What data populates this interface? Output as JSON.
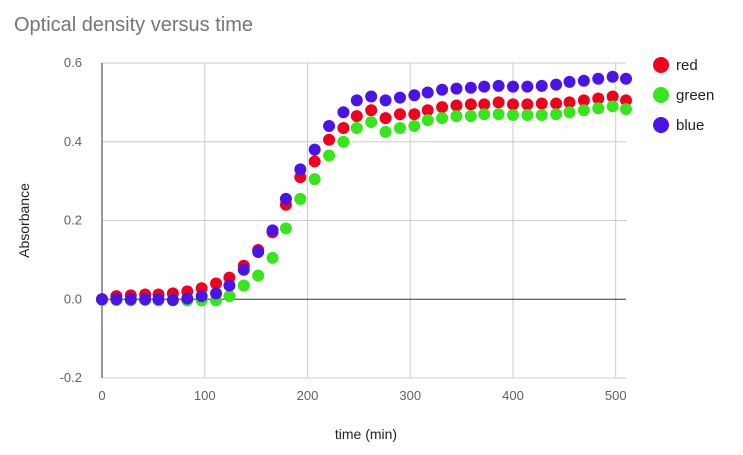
{
  "chart_data": {
    "type": "scatter",
    "title": "Optical density versus time",
    "xlabel": "time (min)",
    "ylabel": "Absorbance",
    "xlim": [
      0,
      510
    ],
    "ylim": [
      -0.2,
      0.6
    ],
    "x_ticks": [
      "0",
      "100",
      "200",
      "300",
      "400",
      "500"
    ],
    "y_ticks": [
      "-0.2",
      "0.0",
      "0.2",
      "0.4",
      "0.6"
    ],
    "grid": true,
    "legend_position": "right",
    "x": [
      0,
      14,
      28,
      42,
      55,
      69,
      83,
      97,
      111,
      124,
      138,
      152,
      166,
      179,
      193,
      207,
      221,
      235,
      248,
      262,
      276,
      290,
      304,
      317,
      331,
      345,
      359,
      372,
      386,
      400,
      414,
      428,
      442,
      455,
      469,
      483,
      497,
      510
    ],
    "series": [
      {
        "name": "red",
        "color": "#f0001e",
        "values": [
          0.0,
          0.008,
          0.01,
          0.012,
          0.012,
          0.015,
          0.02,
          0.028,
          0.04,
          0.055,
          0.085,
          0.125,
          0.17,
          0.24,
          0.31,
          0.35,
          0.405,
          0.435,
          0.465,
          0.48,
          0.46,
          0.47,
          0.47,
          0.48,
          0.488,
          0.492,
          0.495,
          0.495,
          0.5,
          0.495,
          0.495,
          0.497,
          0.497,
          0.5,
          0.505,
          0.51,
          0.515,
          0.505
        ]
      },
      {
        "name": "green",
        "color": "#36e61c",
        "values": [
          -0.002,
          -0.002,
          -0.003,
          -0.002,
          -0.003,
          -0.003,
          -0.003,
          -0.003,
          -0.003,
          0.008,
          0.035,
          0.06,
          0.105,
          0.18,
          0.255,
          0.305,
          0.365,
          0.4,
          0.435,
          0.45,
          0.425,
          0.435,
          0.44,
          0.455,
          0.46,
          0.465,
          0.465,
          0.47,
          0.47,
          0.468,
          0.468,
          0.468,
          0.47,
          0.475,
          0.48,
          0.485,
          0.49,
          0.483
        ]
      },
      {
        "name": "blue",
        "color": "#4b14e6",
        "values": [
          0.0,
          0.0,
          0.0,
          0.0,
          0.0,
          -0.002,
          0.002,
          0.008,
          0.015,
          0.035,
          0.075,
          0.12,
          0.175,
          0.255,
          0.33,
          0.38,
          0.44,
          0.475,
          0.505,
          0.515,
          0.505,
          0.512,
          0.518,
          0.525,
          0.532,
          0.535,
          0.537,
          0.54,
          0.542,
          0.54,
          0.54,
          0.542,
          0.545,
          0.552,
          0.555,
          0.56,
          0.565,
          0.56
        ]
      }
    ]
  }
}
